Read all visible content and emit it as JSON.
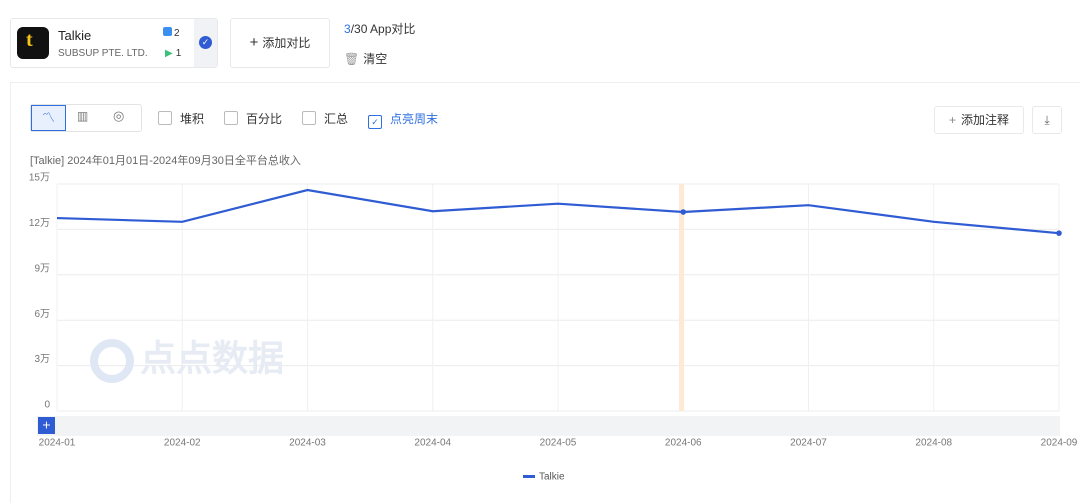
{
  "app": {
    "name": "Talkie",
    "developer": "SUBSUP PTE. LTD.",
    "ios_count": 2,
    "android_count": 1
  },
  "add_compare": "添加对比",
  "compare": {
    "current": 3,
    "label": "/30 App对比"
  },
  "clear": "清空",
  "toolbar": {
    "options": [
      {
        "label": "堆积",
        "checked": false
      },
      {
        "label": "百分比",
        "checked": false
      },
      {
        "label": "汇总",
        "checked": false
      },
      {
        "label": "点亮周末",
        "checked": true
      }
    ],
    "add_note": "添加注释"
  },
  "watermark": "点点数据",
  "chart_data": {
    "type": "line",
    "title": "[Talkie] 2024年01月01日-2024年09月30日全平台总收入",
    "categories": [
      "2024-01",
      "2024-02",
      "2024-03",
      "2024-04",
      "2024-05",
      "2024-06",
      "2024-07",
      "2024-08",
      "2024-09"
    ],
    "series": [
      {
        "name": "Talkie",
        "color": "#2f5bd3",
        "values": [
          127500,
          125000,
          146000,
          132000,
          137000,
          131500,
          136000,
          125000,
          117500
        ]
      }
    ],
    "ylim": [
      0,
      150000
    ],
    "yticks": [
      {
        "value": 0,
        "label": "0"
      },
      {
        "value": 30000,
        "label": "3万"
      },
      {
        "value": 60000,
        "label": "6万"
      },
      {
        "value": 90000,
        "label": "9万"
      },
      {
        "value": 120000,
        "label": "12万"
      },
      {
        "value": 150000,
        "label": "15万"
      }
    ],
    "grid": true
  }
}
